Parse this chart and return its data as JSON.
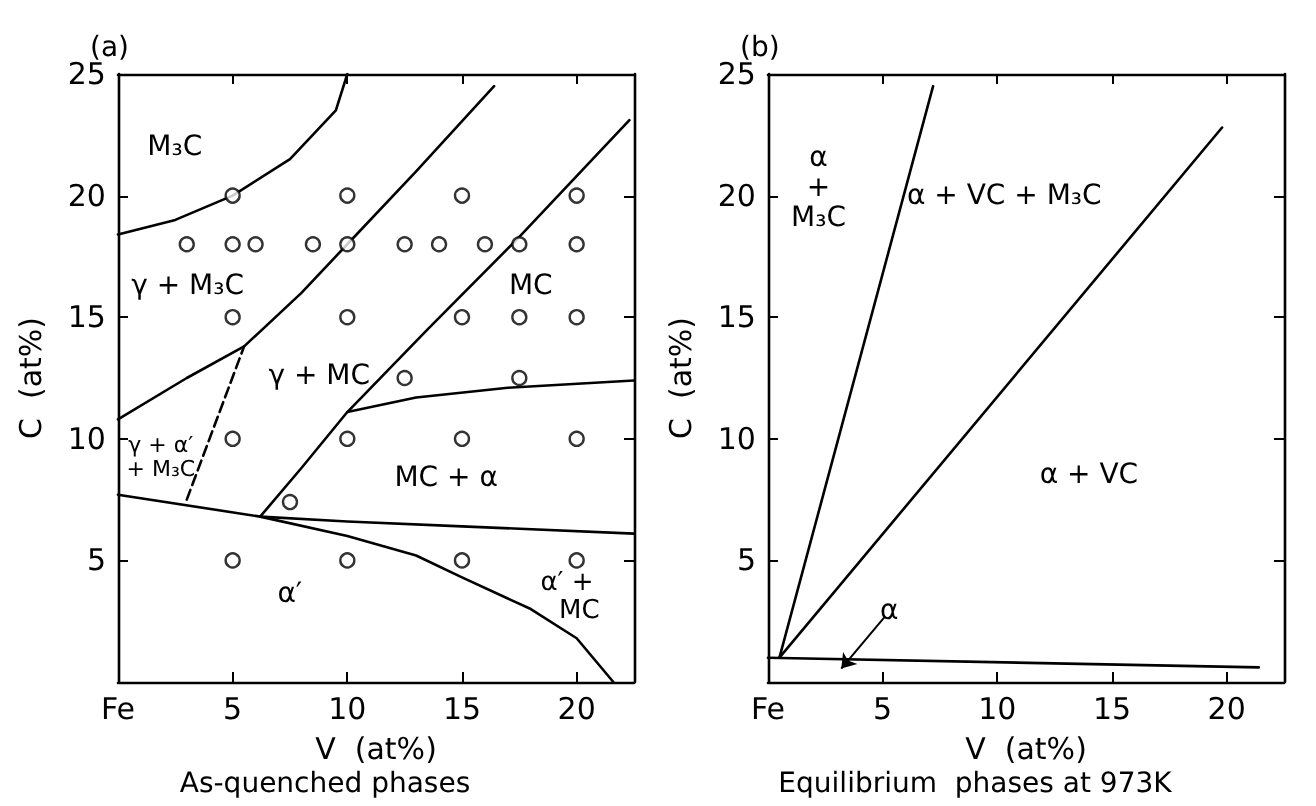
{
  "chart_data": [
    {
      "type": "scatter",
      "title": "(a)",
      "xlabel": "V  (at%)",
      "ylabel": "C  (at%)",
      "xlim": [
        0,
        22.5
      ],
      "ylim": [
        0,
        25
      ],
      "xticks": [
        {
          "value": 0,
          "label": "Fe"
        },
        5,
        10,
        15,
        20
      ],
      "yticks": [
        5,
        10,
        15,
        20,
        25
      ],
      "grid": false,
      "marker": "circle",
      "series": [
        {
          "color": "#000000",
          "x": [
            5,
            10,
            15,
            20,
            3,
            5,
            6,
            8.5,
            10,
            12.5,
            14,
            16,
            17.5,
            20,
            5,
            10,
            15,
            17.5,
            20,
            12.5,
            17.5,
            5,
            10,
            15,
            20,
            7.5,
            5,
            10,
            15,
            20
          ],
          "values": [
            20,
            20,
            20,
            20,
            18,
            18,
            18,
            18,
            18,
            18,
            18,
            18,
            18,
            18,
            15,
            15,
            15,
            15,
            15,
            12.5,
            12.5,
            10,
            10,
            10,
            10,
            7.4,
            5,
            5,
            5,
            5
          ]
        },
        {
          "type": "line",
          "marker": "none",
          "color": "#000000",
          "x": [
            0,
            2.5,
            5,
            7.5,
            9.5,
            10
          ],
          "values": [
            18.4,
            19,
            20,
            21.5,
            23.5,
            25
          ]
        },
        {
          "type": "line",
          "marker": "none",
          "color": "#000000",
          "x": [
            0,
            3,
            5.5,
            8,
            10,
            13,
            16.4
          ],
          "values": [
            10.8,
            12.5,
            13.8,
            16,
            18,
            21,
            24.5
          ]
        },
        {
          "type": "line",
          "marker": "none",
          "color": "#000000",
          "x": [
            6.2,
            8,
            10,
            13.5,
            17.5,
            22.3
          ],
          "values": [
            6.8,
            8.8,
            11.1,
            14.5,
            18.3,
            23.1
          ]
        },
        {
          "type": "line",
          "marker": "none",
          "color": "#000000",
          "x": [
            10,
            13,
            17,
            22.5
          ],
          "values": [
            11.1,
            11.7,
            12.1,
            12.4
          ]
        },
        {
          "type": "line",
          "marker": "none",
          "color": "#000000",
          "x": [
            0,
            6.2,
            10,
            15,
            22.5
          ],
          "values": [
            7.7,
            6.8,
            6.6,
            6.4,
            6.1
          ]
        },
        {
          "type": "line",
          "marker": "none",
          "color": "#000000",
          "x": [
            6.2,
            10,
            13,
            15,
            18,
            20,
            21.6
          ],
          "values": [
            6.8,
            6,
            5.2,
            4.3,
            3,
            1.8,
            0
          ]
        },
        {
          "type": "line",
          "marker": "none",
          "line_style": "dashed",
          "color": "#000000",
          "x": [
            3,
            5.5
          ],
          "values": [
            7.5,
            13.8
          ]
        }
      ],
      "annotations": [
        "M₃C",
        "γ + M₃C",
        "γ + MC",
        "MC",
        "γ + α′\n+ M₃C",
        "MC + α",
        "α′",
        "α′ +\n   MC",
        "As-quenched phases"
      ]
    },
    {
      "type": "line",
      "title": "(b)",
      "xlabel": "V  (at%)",
      "ylabel": "C  (at%)",
      "xlim": [
        0,
        22.5
      ],
      "ylim": [
        0,
        25
      ],
      "xticks": [
        {
          "value": 0,
          "label": "Fe"
        },
        5,
        10,
        15,
        20
      ],
      "yticks": [
        5,
        10,
        15,
        20,
        25
      ],
      "grid": false,
      "marker": "none",
      "series": [
        {
          "color": "#000000",
          "x": [
            0.5,
            7.2
          ],
          "values": [
            1,
            24.5
          ]
        },
        {
          "color": "#000000",
          "x": [
            0.5,
            19.8
          ],
          "values": [
            1,
            22.8
          ]
        },
        {
          "color": "#000000",
          "x": [
            0,
            21.4
          ],
          "values": [
            1,
            0.6
          ]
        }
      ],
      "annotations": [
        "α\n+\nM₃C",
        "α + VC + M₃C",
        "α + VC",
        "α",
        "Equilibrium  phases at 973K"
      ]
    }
  ]
}
